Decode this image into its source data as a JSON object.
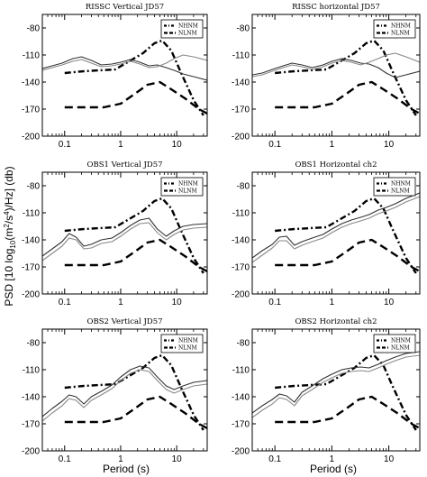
{
  "figure": {
    "ylabel_prefix": "PSD [10 log",
    "ylabel_sub": "10",
    "ylabel_mid": "(m",
    "ylabel_sup1": "2",
    "ylabel_mid2": "/s",
    "ylabel_sup2": "4",
    "ylabel_suffix": ")/Hz] (db)",
    "xlabel": "Period (s)"
  },
  "chart_data": [
    {
      "type": "line",
      "title": "RISSC Vertical JD57",
      "xlabel": "",
      "ylabel": "",
      "xscale": "log",
      "xlim": [
        0.04,
        35
      ],
      "ylim": [
        -200,
        -65
      ],
      "xticks": [
        "0.1",
        "1",
        "10"
      ],
      "yticks": [
        "-80",
        "-110",
        "-140",
        "-170",
        "-200"
      ],
      "legend": {
        "position": "top-right",
        "entries": [
          "NHNM",
          "NLNM"
        ]
      },
      "series": [
        {
          "name": "NHNM",
          "x": [
            0.1,
            0.22,
            0.8,
            2.5,
            4,
            5.5,
            8,
            12,
            20,
            30
          ],
          "y": [
            -130,
            -128,
            -126,
            -108,
            -97,
            -94,
            -105,
            -130,
            -160,
            -177
          ]
        },
        {
          "name": "NLNM",
          "x": [
            0.1,
            0.2,
            0.5,
            1,
            1.8,
            3,
            5,
            8,
            14,
            25,
            35
          ],
          "y": [
            -168,
            -168,
            -168,
            -164,
            -153,
            -143,
            -140,
            -148,
            -158,
            -170,
            -175
          ]
        },
        {
          "name": "",
          "x": [
            0.04,
            0.06,
            0.09,
            0.14,
            0.2,
            0.3,
            0.45,
            0.7,
            1,
            1.5,
            2.2,
            3.2,
            4.5,
            6.5,
            9,
            13,
            20,
            35
          ],
          "y": [
            -125,
            -122,
            -119,
            -114,
            -112,
            -116,
            -121,
            -120,
            -118,
            -115,
            -118,
            -122,
            -121,
            -124,
            -127,
            -131,
            -134,
            -138
          ]
        },
        {
          "name": "",
          "x": [
            0.04,
            0.06,
            0.09,
            0.14,
            0.2,
            0.3,
            0.45,
            0.7,
            1,
            1.5,
            2.2,
            3.2,
            4.5,
            6.5,
            9,
            13,
            20,
            35
          ],
          "y": [
            -127,
            -124,
            -121,
            -117,
            -115,
            -119,
            -123,
            -122,
            -120,
            -117,
            -120,
            -124,
            -123,
            -119,
            -114,
            -110,
            -112,
            -116
          ]
        }
      ]
    },
    {
      "type": "line",
      "title": "RISSC horizontal JD57",
      "xlabel": "",
      "ylabel": "",
      "xscale": "log",
      "xlim": [
        0.04,
        35
      ],
      "ylim": [
        -200,
        -65
      ],
      "xticks": [
        "0.1",
        "1",
        "10"
      ],
      "yticks": [
        "-80",
        "-110",
        "-140",
        "-170",
        "-200"
      ],
      "legend": {
        "position": "top-right",
        "entries": [
          "NHNM",
          "NLNM"
        ]
      },
      "series": [
        {
          "name": "NHNM",
          "x": [
            0.1,
            0.22,
            0.8,
            2.5,
            4,
            5.5,
            8,
            12,
            20,
            30
          ],
          "y": [
            -130,
            -128,
            -126,
            -108,
            -97,
            -94,
            -105,
            -130,
            -160,
            -177
          ]
        },
        {
          "name": "NLNM",
          "x": [
            0.1,
            0.2,
            0.5,
            1,
            1.8,
            3,
            5,
            8,
            14,
            25,
            35
          ],
          "y": [
            -168,
            -168,
            -168,
            -164,
            -153,
            -143,
            -140,
            -148,
            -158,
            -170,
            -175
          ]
        },
        {
          "name": "",
          "x": [
            0.04,
            0.06,
            0.09,
            0.14,
            0.2,
            0.3,
            0.45,
            0.7,
            1,
            1.5,
            2.2,
            3.2,
            4.5,
            6.5,
            9,
            13,
            20,
            35
          ],
          "y": [
            -132,
            -130,
            -126,
            -122,
            -119,
            -121,
            -124,
            -121,
            -117,
            -114,
            -116,
            -119,
            -120,
            -124,
            -130,
            -135,
            -132,
            -128
          ]
        },
        {
          "name": "",
          "x": [
            0.04,
            0.06,
            0.09,
            0.14,
            0.2,
            0.3,
            0.45,
            0.7,
            1,
            1.5,
            2.2,
            3.2,
            4.5,
            6.5,
            9,
            13,
            20,
            35
          ],
          "y": [
            -134,
            -132,
            -128,
            -124,
            -121,
            -123,
            -126,
            -123,
            -119,
            -116,
            -118,
            -121,
            -118,
            -114,
            -110,
            -108,
            -112,
            -118
          ]
        }
      ]
    },
    {
      "type": "line",
      "title": "OBS1 Vertical JD57",
      "xlabel": "",
      "ylabel": "",
      "xscale": "log",
      "xlim": [
        0.04,
        35
      ],
      "ylim": [
        -200,
        -65
      ],
      "xticks": [
        "0.1",
        "1",
        "10"
      ],
      "yticks": [
        "-80",
        "-110",
        "-140",
        "-170",
        "-200"
      ],
      "legend": {
        "position": "top-right",
        "entries": [
          "NHNM",
          "NLNM"
        ]
      },
      "series": [
        {
          "name": "NHNM",
          "x": [
            0.1,
            0.22,
            0.8,
            2.5,
            4,
            5.5,
            8,
            12,
            20,
            30
          ],
          "y": [
            -130,
            -128,
            -126,
            -108,
            -97,
            -94,
            -105,
            -130,
            -160,
            -177
          ]
        },
        {
          "name": "NLNM",
          "x": [
            0.1,
            0.2,
            0.5,
            1,
            1.8,
            3,
            5,
            8,
            14,
            25,
            35
          ],
          "y": [
            -168,
            -168,
            -168,
            -164,
            -153,
            -143,
            -140,
            -148,
            -158,
            -170,
            -175
          ]
        },
        {
          "name": "",
          "x": [
            0.04,
            0.06,
            0.09,
            0.12,
            0.16,
            0.22,
            0.3,
            0.45,
            0.7,
            1,
            1.5,
            2.2,
            3.2,
            4.5,
            6.5,
            9,
            13,
            20,
            35
          ],
          "y": [
            -158,
            -150,
            -142,
            -133,
            -137,
            -147,
            -145,
            -140,
            -138,
            -132,
            -124,
            -118,
            -116,
            -128,
            -136,
            -130,
            -125,
            -123,
            -122
          ]
        },
        {
          "name": "",
          "x": [
            0.04,
            0.06,
            0.09,
            0.12,
            0.16,
            0.22,
            0.3,
            0.45,
            0.7,
            1,
            1.5,
            2.2,
            3.2,
            4.5,
            6.5,
            9,
            13,
            20,
            35
          ],
          "y": [
            -163,
            -155,
            -147,
            -138,
            -140,
            -150,
            -149,
            -144,
            -142,
            -136,
            -128,
            -122,
            -121,
            -132,
            -140,
            -134,
            -129,
            -127,
            -126
          ]
        }
      ]
    },
    {
      "type": "line",
      "title": "OBS1 Horizontal ch2",
      "xlabel": "",
      "ylabel": "",
      "xscale": "log",
      "xlim": [
        0.04,
        35
      ],
      "ylim": [
        -200,
        -65
      ],
      "xticks": [
        "0.1",
        "1",
        "10"
      ],
      "yticks": [
        "-80",
        "-110",
        "-140",
        "-170",
        "-200"
      ],
      "legend": {
        "position": "top-right",
        "entries": [
          "NHNM",
          "NLNM"
        ]
      },
      "series": [
        {
          "name": "NHNM",
          "x": [
            0.1,
            0.22,
            0.8,
            2.5,
            4,
            5.5,
            8,
            12,
            20,
            30
          ],
          "y": [
            -130,
            -128,
            -126,
            -108,
            -97,
            -94,
            -105,
            -130,
            -160,
            -177
          ]
        },
        {
          "name": "NLNM",
          "x": [
            0.1,
            0.2,
            0.5,
            1,
            1.8,
            3,
            5,
            8,
            14,
            25,
            35
          ],
          "y": [
            -168,
            -168,
            -168,
            -164,
            -153,
            -143,
            -140,
            -148,
            -158,
            -170,
            -175
          ]
        },
        {
          "name": "",
          "x": [
            0.04,
            0.06,
            0.09,
            0.12,
            0.16,
            0.22,
            0.3,
            0.45,
            0.7,
            1,
            1.5,
            2.2,
            3.2,
            4.5,
            6.5,
            9,
            13,
            20,
            35
          ],
          "y": [
            -160,
            -152,
            -145,
            -137,
            -136,
            -146,
            -142,
            -138,
            -134,
            -128,
            -122,
            -118,
            -115,
            -112,
            -107,
            -104,
            -100,
            -94,
            -88
          ]
        },
        {
          "name": "",
          "x": [
            0.04,
            0.06,
            0.09,
            0.12,
            0.16,
            0.22,
            0.3,
            0.45,
            0.7,
            1,
            1.5,
            2.2,
            3.2,
            4.5,
            6.5,
            9,
            13,
            20,
            35
          ],
          "y": [
            -165,
            -157,
            -149,
            -141,
            -141,
            -150,
            -146,
            -142,
            -138,
            -132,
            -126,
            -122,
            -119,
            -116,
            -111,
            -108,
            -104,
            -98,
            -92
          ]
        }
      ]
    },
    {
      "type": "line",
      "title": "OBS2 Vertical JD57",
      "xlabel": "",
      "ylabel": "",
      "xscale": "log",
      "xlim": [
        0.04,
        35
      ],
      "ylim": [
        -200,
        -65
      ],
      "xticks": [
        "0.1",
        "1",
        "10"
      ],
      "yticks": [
        "-80",
        "-110",
        "-140",
        "-170",
        "-200"
      ],
      "legend": {
        "position": "top-right",
        "entries": [
          "NHNM",
          "NLNM"
        ]
      },
      "series": [
        {
          "name": "NHNM",
          "x": [
            0.1,
            0.22,
            0.8,
            2.5,
            4,
            5.5,
            8,
            12,
            20,
            30
          ],
          "y": [
            -130,
            -128,
            -126,
            -108,
            -97,
            -94,
            -105,
            -130,
            -160,
            -177
          ]
        },
        {
          "name": "NLNM",
          "x": [
            0.1,
            0.2,
            0.5,
            1,
            1.8,
            3,
            5,
            8,
            14,
            25,
            35
          ],
          "y": [
            -168,
            -168,
            -168,
            -164,
            -153,
            -143,
            -140,
            -148,
            -158,
            -170,
            -175
          ]
        },
        {
          "name": "",
          "x": [
            0.04,
            0.06,
            0.09,
            0.12,
            0.16,
            0.22,
            0.3,
            0.45,
            0.7,
            1,
            1.5,
            2.2,
            3.2,
            4.5,
            6.5,
            9,
            13,
            20,
            35
          ],
          "y": [
            -162,
            -153,
            -145,
            -138,
            -140,
            -148,
            -140,
            -134,
            -127,
            -118,
            -110,
            -106,
            -108,
            -118,
            -128,
            -132,
            -128,
            -124,
            -122
          ]
        },
        {
          "name": "",
          "x": [
            0.04,
            0.06,
            0.09,
            0.12,
            0.16,
            0.22,
            0.3,
            0.45,
            0.7,
            1,
            1.5,
            2.2,
            3.2,
            4.5,
            6.5,
            9,
            13,
            20,
            35
          ],
          "y": [
            -167,
            -158,
            -150,
            -142,
            -144,
            -152,
            -144,
            -138,
            -131,
            -122,
            -114,
            -110,
            -112,
            -122,
            -132,
            -136,
            -132,
            -128,
            -126
          ]
        }
      ]
    },
    {
      "type": "line",
      "title": "OBS2 Horizontal ch2",
      "xlabel": "",
      "ylabel": "",
      "xscale": "log",
      "xlim": [
        0.04,
        35
      ],
      "ylim": [
        -200,
        -65
      ],
      "xticks": [
        "0.1",
        "1",
        "10"
      ],
      "yticks": [
        "-80",
        "-110",
        "-140",
        "-170",
        "-200"
      ],
      "legend": {
        "position": "top-right",
        "entries": [
          "NHNM",
          "NLNM"
        ]
      },
      "series": [
        {
          "name": "NHNM",
          "x": [
            0.1,
            0.22,
            0.8,
            2.5,
            4,
            5.5,
            8,
            12,
            20,
            30
          ],
          "y": [
            -130,
            -128,
            -126,
            -108,
            -97,
            -94,
            -105,
            -130,
            -160,
            -177
          ]
        },
        {
          "name": "NLNM",
          "x": [
            0.1,
            0.2,
            0.5,
            1,
            1.8,
            3,
            5,
            8,
            14,
            25,
            35
          ],
          "y": [
            -168,
            -168,
            -168,
            -164,
            -153,
            -143,
            -140,
            -148,
            -158,
            -170,
            -175
          ]
        },
        {
          "name": "",
          "x": [
            0.04,
            0.06,
            0.09,
            0.12,
            0.16,
            0.22,
            0.3,
            0.45,
            0.7,
            1,
            1.5,
            2.2,
            3.2,
            4.5,
            6.5,
            9,
            13,
            20,
            35
          ],
          "y": [
            -158,
            -150,
            -143,
            -137,
            -139,
            -146,
            -135,
            -128,
            -120,
            -115,
            -110,
            -108,
            -107,
            -108,
            -104,
            -100,
            -96,
            -92,
            -90
          ]
        },
        {
          "name": "",
          "x": [
            0.04,
            0.06,
            0.09,
            0.12,
            0.16,
            0.22,
            0.3,
            0.45,
            0.7,
            1,
            1.5,
            2.2,
            3.2,
            4.5,
            6.5,
            9,
            13,
            20,
            35
          ],
          "y": [
            -163,
            -155,
            -148,
            -141,
            -143,
            -150,
            -139,
            -132,
            -124,
            -119,
            -114,
            -112,
            -111,
            -112,
            -108,
            -104,
            -100,
            -96,
            -94
          ]
        }
      ]
    }
  ]
}
